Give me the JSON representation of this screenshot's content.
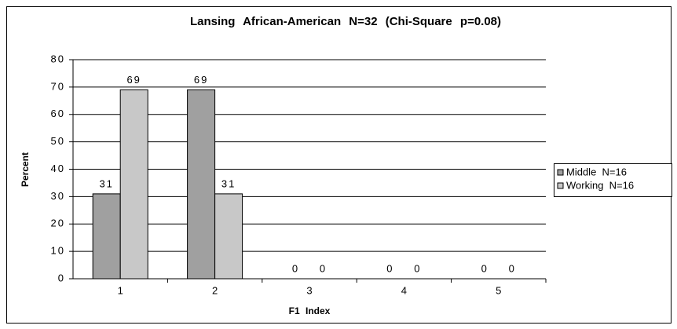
{
  "chart_data": {
    "type": "bar",
    "title": "Lansing   African-American   N=32   (Chi-Square   p=0.08)",
    "x_label": "F1   Index",
    "y_label": "Percent",
    "categories": [
      "1",
      "2",
      "3",
      "4",
      "5"
    ],
    "series": [
      {
        "name": "Middle  N=16",
        "color": "#a0a0a0",
        "values": [
          31,
          69,
          0,
          0,
          0
        ]
      },
      {
        "name": "Working  N=16",
        "color": "#c8c8c8",
        "values": [
          69,
          31,
          0,
          0,
          0
        ]
      }
    ],
    "ylim": [
      0,
      80
    ],
    "yticks": [
      0,
      10,
      20,
      30,
      40,
      50,
      60,
      70,
      80
    ],
    "grid": true,
    "legend": "right"
  }
}
